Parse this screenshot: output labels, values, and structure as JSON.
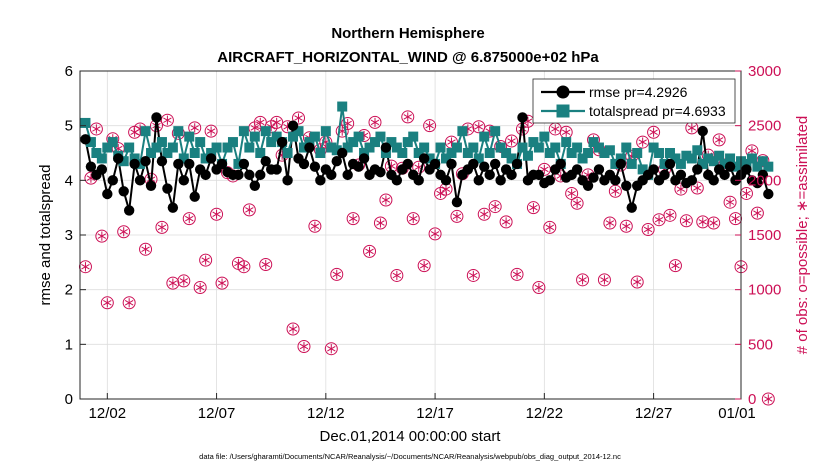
{
  "chart_data": {
    "type": "line",
    "title_line1": "Northern Hemisphere",
    "title_line2": "AIRCRAFT_HORIZONTAL_WIND @ 6.875000e+02 hPa",
    "xlabel": "Dec.01,2014 00:00:00 start",
    "ylabel_left": "rmse and totalspread",
    "ylabel_right": "# of obs: o=possible; ∗=assimilated",
    "footnote": "data file: /Users/gharamti/Documents/NCAR/Reanalysis/~/Documents/NCAR/Reanalysis/webpub/obs_diag_output_2014-12.nc",
    "x_range": [
      0.75,
      31.0
    ],
    "y_left_range": [
      0,
      6
    ],
    "y_right_range": [
      0,
      3000
    ],
    "x_ticks": [
      {
        "value": 2,
        "label": "12/02"
      },
      {
        "value": 7,
        "label": "12/07"
      },
      {
        "value": 12,
        "label": "12/12"
      },
      {
        "value": 17,
        "label": "12/17"
      },
      {
        "value": 22,
        "label": "12/22"
      },
      {
        "value": 27,
        "label": "12/27"
      },
      {
        "value": 32,
        "label": "01/01"
      }
    ],
    "y_left_ticks": [
      "0",
      "1",
      "2",
      "3",
      "4",
      "5",
      "6"
    ],
    "y_right_ticks": [
      "0",
      "500",
      "1000",
      "1500",
      "2000",
      "2500",
      "3000"
    ],
    "x_start": 1.0,
    "x_step": 0.25,
    "series": [
      {
        "name": "rmse",
        "legend_label": "rmse pr=4.2926",
        "axis": "left",
        "color": "#000000",
        "marker": "circle",
        "values": [
          4.75,
          4.25,
          4.1,
          4.2,
          3.75,
          4.0,
          4.4,
          3.8,
          3.45,
          4.3,
          4.0,
          4.35,
          3.9,
          5.15,
          4.35,
          3.85,
          3.5,
          4.3,
          4.0,
          4.3,
          3.7,
          4.2,
          4.1,
          4.4,
          4.2,
          4.3,
          4.15,
          4.1,
          4.1,
          4.3,
          4.1,
          3.9,
          4.1,
          4.35,
          4.2,
          4.2,
          4.7,
          4.0,
          5.0,
          4.4,
          4.3,
          4.6,
          4.25,
          4.0,
          4.2,
          4.1,
          4.35,
          4.5,
          4.1,
          4.3,
          4.25,
          4.4,
          4.1,
          4.2,
          4.15,
          4.6,
          4.1,
          4.0,
          4.2,
          4.3,
          4.1,
          4.0,
          4.4,
          4.2,
          4.3,
          4.1,
          4.0,
          4.3,
          3.6,
          4.1,
          4.2,
          4.3,
          4.0,
          4.25,
          4.1,
          4.3,
          4.0,
          4.2,
          4.1,
          4.3,
          5.15,
          4.0,
          4.1,
          4.1,
          3.95,
          4.0,
          4.2,
          4.3,
          4.05,
          4.1,
          4.2,
          4.0,
          3.9,
          4.05,
          4.2,
          4.0,
          4.1,
          4.0,
          4.3,
          3.9,
          3.5,
          3.9,
          4.0,
          4.1,
          4.2,
          4.0,
          4.1,
          4.3,
          4.0,
          4.1,
          3.95,
          4.0,
          4.2,
          4.9,
          4.1,
          4.0,
          4.2,
          4.1,
          4.25,
          4.0,
          4.1,
          4.2,
          4.0,
          3.95,
          4.1,
          3.75
        ]
      },
      {
        "name": "totalspread",
        "legend_label": "totalspread pr=4.6933",
        "axis": "left",
        "color": "#1a8080",
        "marker": "square",
        "values": [
          5.05,
          4.7,
          4.5,
          4.4,
          4.6,
          4.7,
          4.45,
          4.35,
          4.6,
          4.4,
          4.3,
          4.9,
          4.5,
          4.6,
          4.7,
          4.5,
          4.6,
          4.9,
          4.4,
          4.8,
          4.5,
          4.7,
          4.4,
          4.5,
          4.6,
          4.3,
          4.6,
          4.7,
          4.3,
          4.9,
          4.6,
          4.8,
          4.5,
          4.9,
          4.7,
          4.8,
          4.7,
          4.5,
          4.8,
          4.9,
          4.6,
          4.7,
          4.8,
          4.5,
          4.9,
          4.6,
          4.55,
          5.35,
          4.6,
          4.7,
          4.8,
          4.5,
          4.6,
          4.7,
          4.8,
          4.5,
          4.7,
          4.6,
          4.5,
          4.7,
          4.8,
          4.5,
          4.6,
          4.4,
          4.3,
          4.6,
          4.4,
          4.5,
          4.6,
          4.9,
          4.5,
          4.6,
          4.4,
          4.8,
          4.5,
          4.9,
          4.6,
          4.5,
          4.4,
          4.3,
          4.6,
          4.45,
          4.7,
          4.6,
          4.8,
          4.5,
          4.6,
          4.3,
          4.7,
          4.5,
          4.6,
          4.4,
          4.5,
          4.7,
          4.6,
          4.5,
          4.55,
          4.3,
          4.4,
          4.6,
          4.3,
          4.5,
          4.2,
          4.1,
          4.6,
          4.5,
          4.3,
          4.5,
          4.4,
          4.3,
          4.45,
          4.4,
          4.55,
          4.3,
          4.4,
          4.35,
          4.45,
          4.3,
          4.4,
          4.25,
          4.35,
          4.3,
          4.4,
          4.25,
          4.35,
          4.25
        ]
      },
      {
        "name": "possible",
        "legend_label": "",
        "axis": "right",
        "color": "#cc0f55",
        "marker": "open-circle",
        "values": [
          1210,
          2020,
          2470,
          1490,
          880,
          2380,
          2290,
          1530,
          880,
          2440,
          2470,
          1370,
          2010,
          2500,
          1570,
          2550,
          1060,
          2430,
          1080,
          1650,
          2480,
          1020,
          1270,
          2450,
          1690,
          1060,
          2070,
          2040,
          1240,
          1210,
          1730,
          2480,
          2530,
          1230,
          2490,
          2530,
          2230,
          2490,
          640,
          2570,
          480,
          2390,
          1580,
          2280,
          2350,
          460,
          1140,
          2450,
          2520,
          1650,
          2140,
          2410,
          1350,
          2530,
          1610,
          1820,
          2130,
          1130,
          2110,
          2580,
          1650,
          2120,
          1220,
          2500,
          1510,
          1880,
          1920,
          2350,
          1670,
          2060,
          2470,
          1130,
          2490,
          1690,
          2450,
          1760,
          2310,
          1620,
          2360,
          1140,
          2470,
          2540,
          1750,
          1020,
          2100,
          1570,
          2470,
          2040,
          2440,
          1880,
          1790,
          1090,
          2050,
          2370,
          2280,
          1090,
          1610,
          1900,
          2140,
          1580,
          2220,
          1070,
          2350,
          1550,
          2440,
          1640,
          2100,
          1680,
          1220,
          1920,
          1630,
          2480,
          1930,
          1620,
          2230,
          1610,
          2370,
          2140,
          1800,
          1650,
          1210,
          1880,
          2270,
          1700,
          2180,
          0
        ]
      },
      {
        "name": "assimilated",
        "legend_label": "",
        "axis": "right",
        "color": "#cc0f55",
        "marker": "asterisk",
        "values": [
          1210,
          2020,
          2470,
          1490,
          880,
          2380,
          2290,
          1530,
          880,
          2440,
          2470,
          1370,
          2010,
          2500,
          1570,
          2550,
          1060,
          2430,
          1080,
          1650,
          2480,
          1020,
          1270,
          2450,
          1690,
          1060,
          2070,
          2040,
          1240,
          1210,
          1730,
          2480,
          2530,
          1230,
          2490,
          2530,
          2230,
          2490,
          640,
          2570,
          480,
          2390,
          1580,
          2280,
          2350,
          460,
          1140,
          2450,
          2520,
          1650,
          2140,
          2410,
          1350,
          2530,
          1610,
          1820,
          2130,
          1130,
          2110,
          2580,
          1650,
          2120,
          1220,
          2500,
          1510,
          1880,
          1920,
          2350,
          1670,
          2060,
          2470,
          1130,
          2490,
          1690,
          2450,
          1760,
          2310,
          1620,
          2360,
          1140,
          2470,
          2540,
          1750,
          1020,
          2100,
          1570,
          2470,
          2040,
          2440,
          1880,
          1790,
          1090,
          2050,
          2370,
          2280,
          1090,
          1610,
          1900,
          2140,
          1580,
          2220,
          1070,
          2350,
          1550,
          2440,
          1640,
          2100,
          1680,
          1220,
          1920,
          1630,
          2480,
          1930,
          1620,
          2230,
          1610,
          2370,
          2140,
          1800,
          1650,
          1210,
          1880,
          2270,
          1700,
          2180,
          0
        ]
      }
    ]
  }
}
